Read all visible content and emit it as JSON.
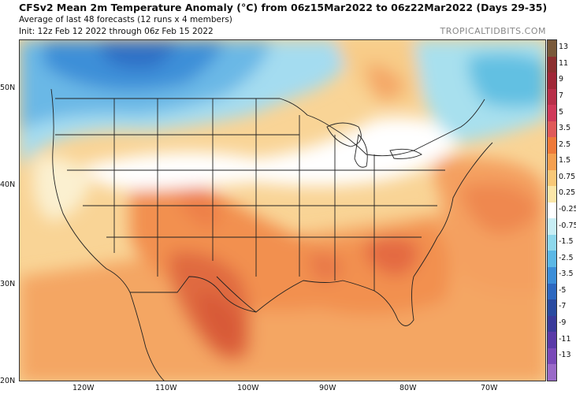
{
  "header": {
    "title": "CFSv2 Mean 2m Temperature Anomaly (°C) from 06z15Mar2022 to 06z22Mar2022 (Days 29-35)",
    "subtitle": "Average of last 48 forecasts (12 runs x 4 members)",
    "init": "Init: 12z Feb 12 2022 through 06z Feb 15 2022",
    "credit": "TROPICALTIDBITS.COM"
  },
  "map": {
    "region": "Continental United States",
    "lat_labels": [
      "50N",
      "40N",
      "30N",
      "20N"
    ],
    "lon_labels": [
      "120W",
      "110W",
      "100W",
      "90W",
      "80W",
      "70W"
    ]
  },
  "colorbar": {
    "labels": [
      "13",
      "11",
      "9",
      "7",
      "5",
      "3.5",
      "2.5",
      "1.5",
      "0.75",
      "0.25",
      "-0.25",
      "-0.75",
      "-1.5",
      "-2.5",
      "-3.5",
      "-5",
      "-7",
      "-9",
      "-11",
      "-13"
    ],
    "colors": [
      "#7a5a3a",
      "#8c3030",
      "#a02838",
      "#b8304a",
      "#d03a5a",
      "#e05a5a",
      "#ee7a3a",
      "#f5a050",
      "#f8c878",
      "#fbe6a8",
      "#ffffff",
      "#c8eef5",
      "#8ed8ec",
      "#5cb8e6",
      "#3c8ed8",
      "#2d68c0",
      "#2a4ba0",
      "#3a3a9a",
      "#5a3aa8",
      "#7a4ab8",
      "#9a6ac8"
    ]
  }
}
